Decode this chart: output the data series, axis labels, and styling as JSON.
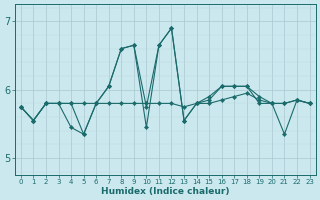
{
  "xlabel": "Humidex (Indice chaleur)",
  "bg_color": "#cce8ef",
  "grid_color_major": "#aac8d0",
  "grid_color_minor": "#bdd8e0",
  "line_color": "#1a6b6b",
  "xlim": [
    -0.5,
    23.5
  ],
  "ylim": [
    4.75,
    7.25
  ],
  "yticks": [
    5,
    6,
    7
  ],
  "xticks": [
    0,
    1,
    2,
    3,
    4,
    5,
    6,
    7,
    8,
    9,
    10,
    11,
    12,
    13,
    14,
    15,
    16,
    17,
    18,
    19,
    20,
    21,
    22,
    23
  ],
  "series": [
    [
      5.75,
      5.55,
      5.8,
      5.8,
      5.8,
      5.35,
      5.8,
      6.05,
      6.6,
      6.65,
      5.75,
      6.65,
      6.9,
      5.55,
      5.8,
      5.9,
      6.05,
      6.05,
      6.05,
      5.9,
      5.8,
      5.8,
      5.85,
      5.8
    ],
    [
      5.75,
      5.55,
      5.8,
      5.8,
      5.8,
      5.8,
      5.8,
      5.8,
      5.8,
      5.8,
      5.8,
      5.8,
      5.8,
      5.75,
      5.8,
      5.8,
      5.85,
      5.9,
      5.95,
      5.85,
      5.8,
      5.8,
      5.85,
      5.8
    ],
    [
      5.75,
      5.55,
      5.8,
      5.8,
      5.45,
      5.35,
      5.8,
      6.05,
      6.6,
      6.65,
      5.45,
      6.65,
      6.9,
      5.55,
      5.8,
      5.85,
      6.05,
      6.05,
      6.05,
      5.8,
      5.8,
      5.35,
      5.85,
      5.8
    ]
  ],
  "marker": "D",
  "markersize": 2.2,
  "linewidth": 0.8,
  "figsize": [
    3.2,
    2.0
  ],
  "dpi": 100
}
